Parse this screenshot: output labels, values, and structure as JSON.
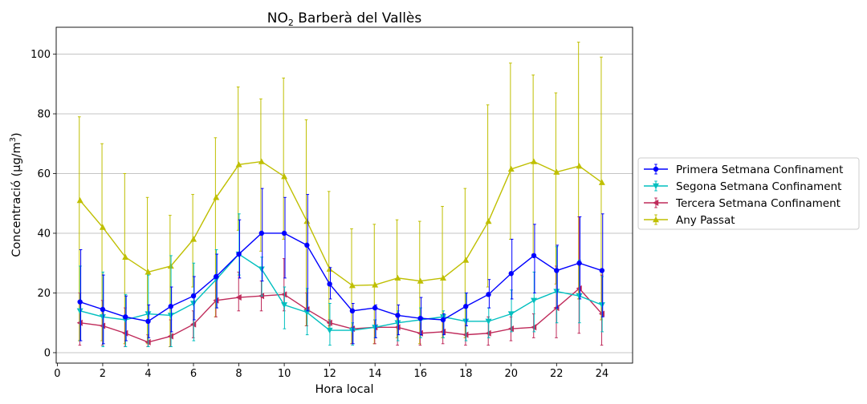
{
  "chart_data": {
    "type": "line",
    "title": "NO2 Barberà del Vallès",
    "title_parts": {
      "main": "NO",
      "sub": "2",
      "rest": " Barberà del Vallès"
    },
    "xlabel": "Hora local",
    "ylabel": "Concentració (µg/m3)",
    "ylabel_parts": {
      "main": "Concentració (µg/m",
      "sup": "3",
      "rest": ")"
    },
    "xlim": [
      -0.05,
      25.35
    ],
    "ylim": [
      -3.5,
      109
    ],
    "xticks": [
      0,
      2,
      4,
      6,
      8,
      10,
      12,
      14,
      16,
      18,
      20,
      22,
      24
    ],
    "yticks": [
      0,
      20,
      40,
      60,
      80,
      100
    ],
    "grid": "horizontal",
    "legend_position": "right-outside",
    "x": [
      1,
      2,
      3,
      4,
      5,
      6,
      7,
      8,
      9,
      10,
      11,
      12,
      13,
      14,
      15,
      16,
      17,
      18,
      19,
      20,
      21,
      22,
      23,
      24
    ],
    "series": [
      {
        "name": "Any Passat",
        "color": "#bfbf00",
        "marker": "triangle-up",
        "values": [
          51,
          42,
          32,
          27,
          29,
          38,
          52,
          63,
          64,
          59,
          44,
          28,
          22.5,
          22.7,
          25,
          24,
          25,
          31,
          44,
          61.5,
          64,
          60.5,
          62.5,
          57
        ],
        "err_low": [
          4,
          4,
          3,
          3,
          2,
          22,
          12,
          41,
          34,
          38,
          9,
          8,
          3,
          3,
          5,
          3,
          5,
          5,
          22,
          38,
          33,
          23,
          18,
          11
        ],
        "err_high": [
          79,
          70,
          60,
          52,
          46,
          53,
          72,
          89,
          85,
          92,
          78,
          54,
          41.5,
          43,
          44.5,
          44,
          49,
          55,
          83,
          97,
          93,
          87,
          104,
          99
        ]
      },
      {
        "name": "Tercera Setmana Confinament",
        "color": "#bf2a5a",
        "marker": "tri-left",
        "values": [
          10,
          9,
          6.5,
          3.5,
          5.5,
          9.5,
          17.5,
          18.5,
          19,
          19.5,
          14.5,
          10,
          8,
          8.5,
          8.5,
          6.5,
          7,
          6,
          6.5,
          8,
          8.5,
          15,
          21.5,
          13
        ],
        "err_low": [
          2.5,
          2.5,
          2,
          2,
          2,
          5,
          12,
          14,
          14,
          14,
          9,
          9,
          3,
          3,
          2.5,
          2.5,
          3,
          2.5,
          2.5,
          4,
          5,
          5,
          6.5,
          2.5
        ],
        "err_high": [
          20,
          17.5,
          15,
          6,
          11,
          14,
          24,
          27,
          24,
          31.5,
          20,
          11,
          8.5,
          11,
          13,
          11,
          12,
          11,
          12,
          12,
          13,
          29,
          45.5,
          26
        ]
      },
      {
        "name": "Segona Setmana Confinament",
        "color": "#00bfbf",
        "marker": "triangle-down",
        "values": [
          14,
          12,
          11,
          13,
          12.5,
          16.5,
          24.5,
          33,
          28,
          16,
          13.5,
          7.5,
          7.5,
          8.5,
          10,
          11,
          12,
          10.5,
          10.5,
          13,
          17.5,
          20.5,
          19,
          16
        ],
        "err_low": [
          4,
          2,
          2,
          2,
          2,
          4,
          15,
          26,
          19,
          8,
          6,
          2.5,
          2.5,
          5,
          4,
          5,
          5,
          4,
          5,
          7,
          7,
          10,
          10,
          7
        ],
        "err_high": [
          29,
          27,
          19.5,
          26,
          32.5,
          30,
          34.5,
          46.5,
          32,
          22,
          21.5,
          16.5,
          10,
          11,
          14,
          15,
          14,
          20,
          15,
          21,
          27,
          35.5,
          31,
          25.5
        ]
      },
      {
        "name": "Primera Setmana Confinament",
        "color": "#0000ff",
        "marker": "circle",
        "values": [
          17,
          14.5,
          12,
          10.5,
          15.5,
          19,
          25.5,
          33,
          40,
          40,
          36,
          23,
          14,
          15,
          12.5,
          11.5,
          11,
          15.5,
          19.5,
          26.5,
          32.5,
          27.5,
          30,
          27.5
        ],
        "err_low": [
          4,
          3,
          4,
          5,
          7,
          11,
          15,
          25,
          24,
          25,
          14,
          18,
          3,
          5,
          6,
          6,
          6,
          9,
          15,
          18,
          20,
          15,
          18,
          12
        ],
        "err_high": [
          34.5,
          26,
          19,
          16,
          22,
          25.5,
          33,
          44.5,
          55,
          52,
          53,
          28.5,
          16.5,
          16,
          16,
          18.5,
          13,
          20,
          24.5,
          38,
          43,
          36,
          45.5,
          46.5
        ]
      }
    ],
    "legend_order": [
      "Primera Setmana Confinament",
      "Segona Setmana Confinament",
      "Tercera Setmana Confinament",
      "Any Passat"
    ]
  }
}
